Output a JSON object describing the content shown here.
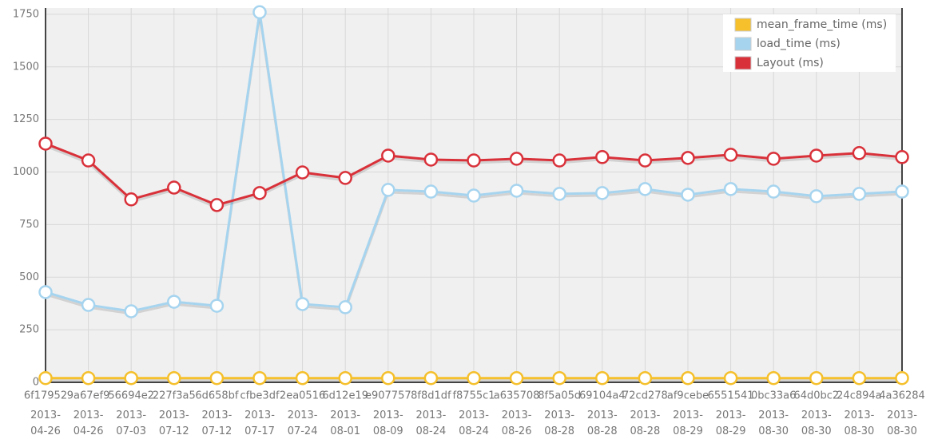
{
  "chart_data": {
    "type": "line",
    "categories": [
      "6f17952",
      "9a67ef9",
      "56694e2",
      "227f3a5",
      "6d658bf",
      "cfbe3df",
      "2ea0516",
      "6d12e19",
      "e907757",
      "8f8d1df",
      "f8755c1",
      "a635708",
      "8f5a05d",
      "69104a4",
      "72cd278",
      "af9cebe",
      "6551541",
      "0bc33a6",
      "64d0bc2",
      "24c894a",
      "4a36284"
    ],
    "dates": [
      "2013-04-26",
      "2013-04-26",
      "2013-07-03",
      "2013-07-12",
      "2013-07-12",
      "2013-07-17",
      "2013-07-24",
      "2013-08-01",
      "2013-08-09",
      "2013-08-24",
      "2013-08-24",
      "2013-08-26",
      "2013-08-28",
      "2013-08-28",
      "2013-08-28",
      "2013-08-29",
      "2013-08-29",
      "2013-08-30",
      "2013-08-30",
      "2013-08-30",
      "2013-08-30"
    ],
    "series": [
      {
        "name": "mean_frame_time (ms)",
        "color": "#f5c02c",
        "values": [
          20,
          20,
          20,
          20,
          20,
          20,
          20,
          20,
          20,
          20,
          20,
          20,
          20,
          20,
          20,
          20,
          20,
          20,
          20,
          20,
          20
        ]
      },
      {
        "name": "load_time (ms)",
        "color": "#a6d4ef",
        "values": [
          429,
          368,
          338,
          383,
          364,
          1760,
          372,
          357,
          915,
          907,
          888,
          911,
          896,
          900,
          919,
          892,
          919,
          907,
          885,
          896,
          907
        ]
      },
      {
        "name": "Layout (ms)",
        "color": "#d9313a",
        "values": [
          1135,
          1055,
          870,
          926,
          843,
          900,
          998,
          972,
          1078,
          1059,
          1055,
          1063,
          1055,
          1071,
          1055,
          1067,
          1082,
          1063,
          1078,
          1090,
          1071
        ]
      }
    ],
    "ylim": [
      0,
      1780
    ],
    "yticks": [
      0,
      250,
      500,
      750,
      1000,
      1250,
      1500,
      1750
    ],
    "grid": true,
    "legend": "top-right"
  }
}
